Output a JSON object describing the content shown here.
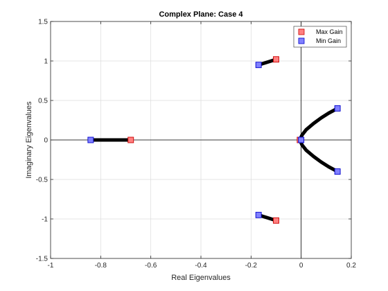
{
  "chart_data": {
    "type": "scatter",
    "title": "Complex Plane: Case 4",
    "xlabel": "Real Eigenvalues",
    "ylabel": "Imaginary Eigenvalues",
    "xlim": [
      -1,
      0.2
    ],
    "ylim": [
      -1.5,
      1.5
    ],
    "xticks": [
      -1,
      -0.8,
      -0.6,
      -0.4,
      -0.2,
      0,
      0.2
    ],
    "yticks": [
      -1.5,
      -1,
      -0.5,
      0,
      0.5,
      1,
      1.5
    ],
    "xtick_labels": [
      "-1",
      "-0.8",
      "-0.6",
      "-0.4",
      "-0.2",
      "0",
      "0.2"
    ],
    "ytick_labels": [
      "-1.5",
      "-1",
      "-0.5",
      "0",
      "0.5",
      "1",
      "1.5"
    ],
    "grid": true,
    "legend_position": "top-right",
    "locus_color": "#000000",
    "loci": [
      {
        "x": [
          -0.84,
          -0.68
        ],
        "y": [
          0,
          0
        ]
      },
      {
        "x": [
          -0.17,
          -0.1
        ],
        "y": [
          0.95,
          1.02
        ]
      },
      {
        "x": [
          -0.17,
          -0.1
        ],
        "y": [
          -0.95,
          -1.02
        ]
      },
      {
        "x": [
          -0.005,
          0.003,
          0.02,
          0.05,
          0.08,
          0.11,
          0.145
        ],
        "y": [
          0,
          0.06,
          0.13,
          0.21,
          0.28,
          0.34,
          0.4
        ]
      },
      {
        "x": [
          -0.005,
          0.003,
          0.02,
          0.05,
          0.08,
          0.11,
          0.145
        ],
        "y": [
          0,
          -0.06,
          -0.13,
          -0.21,
          -0.28,
          -0.34,
          -0.4
        ]
      }
    ],
    "series": [
      {
        "name": "Max Gain",
        "fill": "#ff8080",
        "edge": "#cc0000",
        "points": [
          {
            "x": -0.68,
            "y": 0
          },
          {
            "x": -0.1,
            "y": 1.02
          },
          {
            "x": -0.1,
            "y": -1.02
          },
          {
            "x": -0.005,
            "y": 0
          }
        ]
      },
      {
        "name": "Min Gain",
        "fill": "#8080ff",
        "edge": "#0000cc",
        "points": [
          {
            "x": -0.84,
            "y": 0
          },
          {
            "x": -0.17,
            "y": 0.95
          },
          {
            "x": -0.17,
            "y": -0.95
          },
          {
            "x": 0,
            "y": 0
          },
          {
            "x": 0.145,
            "y": 0.4
          },
          {
            "x": 0.145,
            "y": -0.4
          }
        ]
      }
    ]
  }
}
